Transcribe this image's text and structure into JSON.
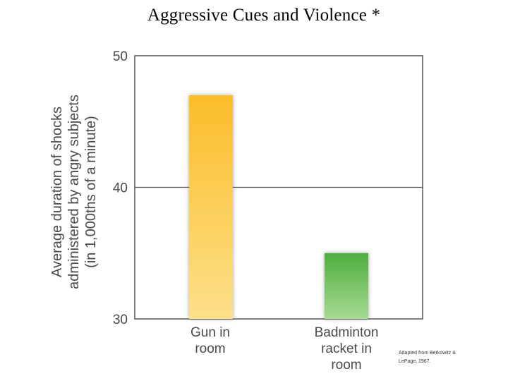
{
  "slide": {
    "title": "Aggressive Cues and Violence *"
  },
  "chart_data": {
    "type": "bar",
    "title": "",
    "categories": [
      "Gun in\nroom",
      "Badminton\nracket in\nroom"
    ],
    "values": [
      47,
      35
    ],
    "colors": [
      "#fbbd2a",
      "#5db54a"
    ],
    "xlabel": "",
    "ylabel": "Average duration of shocks\nadministered by angry subjects\n(in 1,000ths of a minute)",
    "ylim": [
      30,
      50
    ],
    "yticks": [
      30,
      40,
      50
    ],
    "grid": "horizontal at 40",
    "legend": "none",
    "source_note": "Adapted from Berkowitz & LePage, 1967."
  }
}
